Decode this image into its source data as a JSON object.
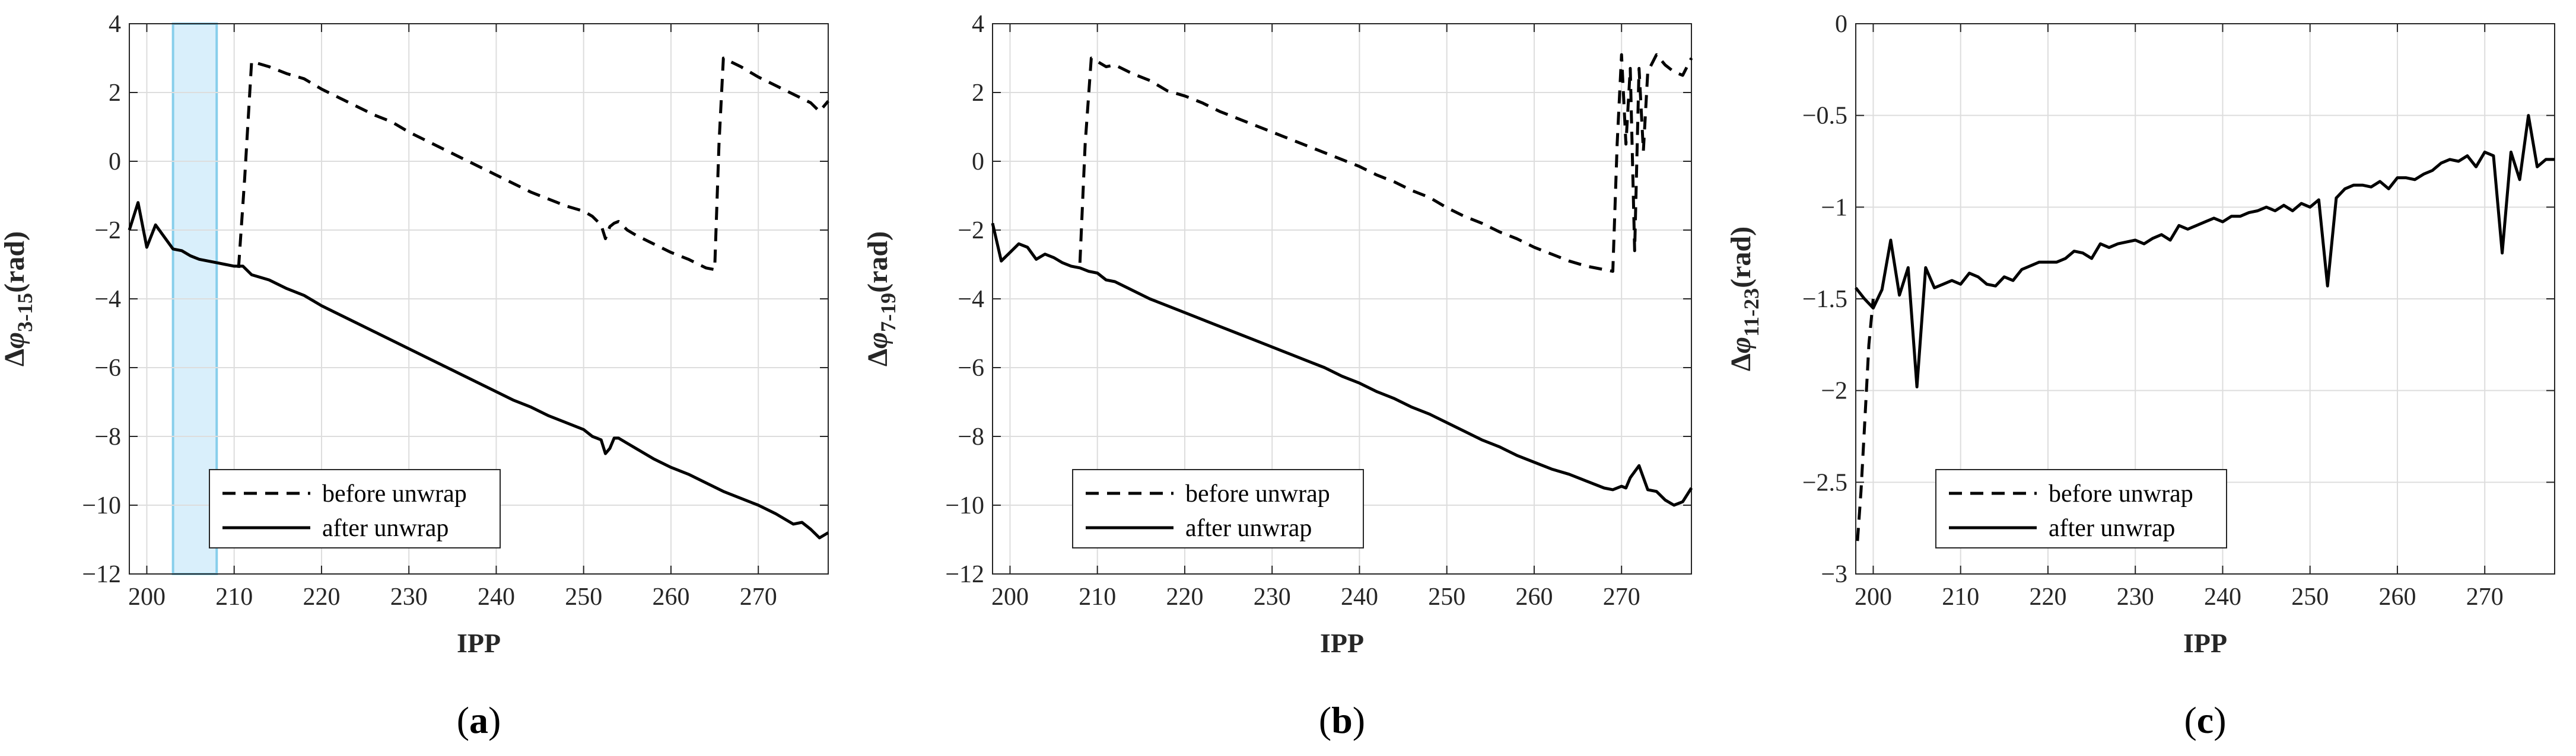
{
  "figure": {
    "grid": true,
    "line_color": "#000000",
    "highlight_fill": "#d9effb",
    "highlight_stroke": "#87ceeb"
  },
  "chart_data": [
    {
      "panel_label": "(a)",
      "type": "line",
      "ylabel_prefix": "Δ",
      "ylabel_symbol": "φ",
      "ylabel_sub": "3-15",
      "ylabel_suffix": "(rad)",
      "xlabel": "IPP",
      "xlim": [
        198,
        278
      ],
      "ylim": [
        -12,
        4
      ],
      "xticks": [
        200,
        210,
        220,
        230,
        240,
        250,
        260,
        270
      ],
      "yticks": [
        -12,
        -10,
        -8,
        -6,
        -4,
        -2,
        0,
        2,
        4
      ],
      "legend_position": "bottom-left",
      "highlight_x": [
        203,
        208
      ],
      "series": [
        {
          "name": "before unwrap",
          "style": "dashed",
          "x": [
            210.5,
            211.2,
            212,
            214,
            216,
            218,
            220,
            222,
            224,
            226,
            228,
            230,
            232,
            234,
            236,
            238,
            240,
            242,
            244,
            246,
            248,
            250,
            251,
            252,
            252.5,
            253,
            253.5,
            254,
            255,
            256,
            258,
            260,
            262,
            264,
            265,
            265.5,
            266,
            268,
            270,
            272,
            274,
            276,
            277,
            278
          ],
          "y": [
            -3.1,
            -0.5,
            2.9,
            2.75,
            2.55,
            2.4,
            2.1,
            1.85,
            1.6,
            1.35,
            1.15,
            0.85,
            0.6,
            0.35,
            0.1,
            -0.15,
            -0.4,
            -0.65,
            -0.9,
            -1.1,
            -1.3,
            -1.45,
            -1.6,
            -1.85,
            -2.25,
            -1.9,
            -1.8,
            -1.75,
            -2.0,
            -2.15,
            -2.4,
            -2.65,
            -2.85,
            -3.1,
            -3.15,
            0.5,
            3.0,
            2.75,
            2.45,
            2.2,
            1.95,
            1.7,
            1.45,
            1.75
          ]
        },
        {
          "name": "after unwrap",
          "style": "solid",
          "x": [
            198,
            199,
            200,
            201,
            202,
            203,
            204,
            205,
            206,
            207,
            208,
            209,
            210,
            211,
            212,
            214,
            216,
            218,
            220,
            222,
            224,
            226,
            228,
            230,
            232,
            234,
            236,
            238,
            240,
            242,
            244,
            246,
            248,
            250,
            251,
            252,
            252.5,
            253,
            253.5,
            254,
            255,
            256,
            258,
            260,
            262,
            264,
            266,
            268,
            270,
            272,
            274,
            275,
            276,
            277,
            278
          ],
          "y": [
            -2.0,
            -1.2,
            -2.5,
            -1.85,
            -2.2,
            -2.55,
            -2.6,
            -2.75,
            -2.85,
            -2.9,
            -2.95,
            -3.0,
            -3.05,
            -3.05,
            -3.3,
            -3.45,
            -3.7,
            -3.9,
            -4.2,
            -4.45,
            -4.7,
            -4.95,
            -5.2,
            -5.45,
            -5.7,
            -5.95,
            -6.2,
            -6.45,
            -6.7,
            -6.95,
            -7.15,
            -7.4,
            -7.6,
            -7.8,
            -8.0,
            -8.1,
            -8.5,
            -8.35,
            -8.05,
            -8.05,
            -8.2,
            -8.35,
            -8.65,
            -8.9,
            -9.1,
            -9.35,
            -9.6,
            -9.8,
            -10.0,
            -10.25,
            -10.55,
            -10.5,
            -10.7,
            -10.95,
            -10.8
          ]
        }
      ]
    },
    {
      "panel_label": "(b)",
      "type": "line",
      "ylabel_prefix": "Δ",
      "ylabel_symbol": "φ",
      "ylabel_sub": "7-19",
      "ylabel_suffix": "(rad)",
      "xlabel": "IPP",
      "xlim": [
        198,
        278
      ],
      "ylim": [
        -12,
        4
      ],
      "xticks": [
        200,
        210,
        220,
        230,
        240,
        250,
        260,
        270
      ],
      "yticks": [
        -12,
        -10,
        -8,
        -6,
        -4,
        -2,
        0,
        2,
        4
      ],
      "legend_position": "bottom-left",
      "series": [
        {
          "name": "before unwrap",
          "style": "dashed",
          "x": [
            208,
            208.6,
            209.3,
            210,
            211,
            212,
            214,
            216,
            218,
            220,
            222,
            224,
            226,
            228,
            230,
            232,
            234,
            236,
            238,
            240,
            242,
            244,
            246,
            248,
            250,
            252,
            254,
            256,
            258,
            260,
            262,
            264,
            266,
            268,
            269,
            269.5,
            270,
            270.5,
            271,
            271.5,
            272,
            272.5,
            273,
            274,
            275,
            276,
            277,
            278
          ],
          "y": [
            -2.95,
            0.5,
            3.0,
            2.9,
            2.75,
            2.8,
            2.55,
            2.35,
            2.05,
            1.9,
            1.7,
            1.45,
            1.25,
            1.05,
            0.85,
            0.65,
            0.45,
            0.25,
            0.05,
            -0.15,
            -0.4,
            -0.6,
            -0.85,
            -1.05,
            -1.35,
            -1.6,
            -1.8,
            -2.05,
            -2.25,
            -2.5,
            -2.7,
            -2.9,
            -3.05,
            -3.15,
            -3.2,
            0.5,
            3.1,
            0.5,
            2.7,
            -2.6,
            2.7,
            0.3,
            2.6,
            3.1,
            2.8,
            2.6,
            2.5,
            3.0
          ]
        },
        {
          "name": "after unwrap",
          "style": "solid",
          "x": [
            198,
            199,
            200,
            201,
            202,
            203,
            204,
            205,
            206,
            207,
            208,
            209,
            210,
            211,
            212,
            214,
            216,
            218,
            220,
            222,
            224,
            226,
            228,
            230,
            232,
            234,
            236,
            238,
            240,
            242,
            244,
            246,
            248,
            250,
            252,
            254,
            256,
            258,
            260,
            262,
            264,
            266,
            268,
            269,
            270,
            270.5,
            271,
            272,
            273,
            274,
            275,
            276,
            277,
            278
          ],
          "y": [
            -1.8,
            -2.9,
            -2.65,
            -2.4,
            -2.5,
            -2.85,
            -2.7,
            -2.8,
            -2.95,
            -3.05,
            -3.1,
            -3.2,
            -3.25,
            -3.45,
            -3.5,
            -3.75,
            -4.0,
            -4.2,
            -4.4,
            -4.6,
            -4.8,
            -5.0,
            -5.2,
            -5.4,
            -5.6,
            -5.8,
            -6.0,
            -6.25,
            -6.45,
            -6.7,
            -6.9,
            -7.15,
            -7.35,
            -7.6,
            -7.85,
            -8.1,
            -8.3,
            -8.55,
            -8.75,
            -8.95,
            -9.1,
            -9.3,
            -9.5,
            -9.55,
            -9.45,
            -9.5,
            -9.2,
            -8.85,
            -9.55,
            -9.6,
            -9.85,
            -10.0,
            -9.9,
            -9.5
          ]
        }
      ]
    },
    {
      "panel_label": "(c)",
      "type": "line",
      "ylabel_prefix": "Δ",
      "ylabel_symbol": "φ",
      "ylabel_sub": "11-23",
      "ylabel_suffix": "(rad)",
      "xlabel": "IPP",
      "xlim": [
        198,
        278
      ],
      "ylim": [
        -3,
        0
      ],
      "xticks": [
        200,
        210,
        220,
        230,
        240,
        250,
        260,
        270
      ],
      "yticks": [
        -3,
        -2.5,
        -2,
        -1.5,
        -1,
        -0.5,
        0
      ],
      "legend_position": "bottom-left",
      "series": [
        {
          "name": "before unwrap",
          "style": "dashed",
          "x": [
            198.2,
            198.6,
            199,
            199.5,
            200
          ],
          "y": [
            -2.82,
            -2.55,
            -2.2,
            -1.75,
            -1.5
          ]
        },
        {
          "name": "after unwrap",
          "style": "solid",
          "x": [
            198,
            199,
            200,
            201,
            202,
            203,
            204,
            205,
            206,
            207,
            208,
            209,
            210,
            211,
            212,
            213,
            214,
            215,
            216,
            217,
            218,
            219,
            220,
            221,
            222,
            223,
            224,
            225,
            226,
            227,
            228,
            229,
            230,
            231,
            232,
            233,
            234,
            235,
            236,
            237,
            238,
            239,
            240,
            241,
            242,
            243,
            244,
            245,
            246,
            247,
            248,
            249,
            250,
            251,
            252,
            253,
            254,
            255,
            256,
            257,
            258,
            259,
            260,
            261,
            262,
            263,
            264,
            265,
            266,
            267,
            268,
            269,
            270,
            271,
            272,
            273,
            274,
            275,
            276,
            277,
            278
          ],
          "y": [
            -1.44,
            -1.5,
            -1.55,
            -1.45,
            -1.18,
            -1.48,
            -1.33,
            -1.98,
            -1.33,
            -1.44,
            -1.42,
            -1.4,
            -1.42,
            -1.36,
            -1.38,
            -1.42,
            -1.43,
            -1.38,
            -1.4,
            -1.34,
            -1.32,
            -1.3,
            -1.3,
            -1.3,
            -1.28,
            -1.24,
            -1.25,
            -1.28,
            -1.2,
            -1.22,
            -1.2,
            -1.19,
            -1.18,
            -1.2,
            -1.17,
            -1.15,
            -1.18,
            -1.1,
            -1.12,
            -1.1,
            -1.08,
            -1.06,
            -1.08,
            -1.05,
            -1.05,
            -1.03,
            -1.02,
            -1.0,
            -1.02,
            -0.99,
            -1.02,
            -0.98,
            -1.0,
            -0.96,
            -1.43,
            -0.95,
            -0.9,
            -0.88,
            -0.88,
            -0.89,
            -0.86,
            -0.9,
            -0.84,
            -0.84,
            -0.85,
            -0.82,
            -0.8,
            -0.76,
            -0.74,
            -0.75,
            -0.72,
            -0.78,
            -0.7,
            -0.72,
            -1.25,
            -0.7,
            -0.85,
            -0.5,
            -0.78,
            -0.74,
            -0.74
          ]
        }
      ]
    }
  ]
}
